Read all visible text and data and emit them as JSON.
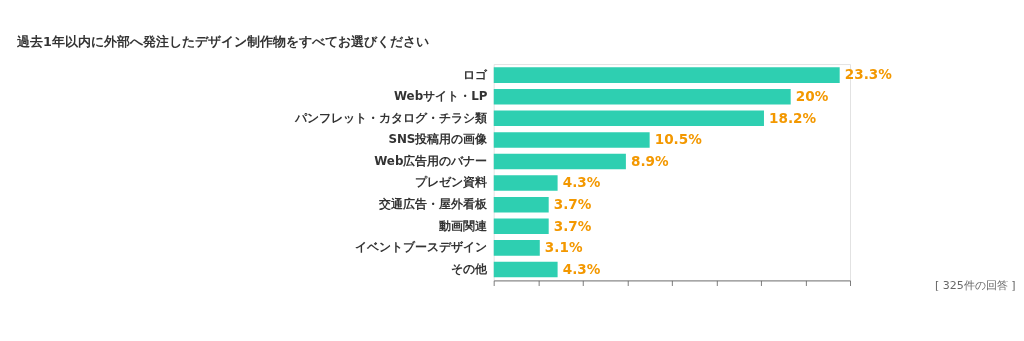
{
  "chart_data": {
    "type": "bar",
    "orientation": "horizontal",
    "title": "過去1年以内に外部へ発注したデザイン制作物をすべてお選びください",
    "categories": [
      "ロゴ",
      "Webサイト・LP",
      "パンフレット・カタログ・チラシ類",
      "SNS投稿用の画像",
      "Web広告用のバナー",
      "プレゼン資料",
      "交通広告・屋外看板",
      "動画関連",
      "イベントブースデザイン",
      "その他"
    ],
    "values": [
      23.3,
      20,
      18.2,
      10.5,
      8.9,
      4.3,
      3.7,
      3.7,
      3.1,
      4.3
    ],
    "value_labels": [
      "23.3%",
      "20%",
      "18.2%",
      "10.5%",
      "8.9%",
      "4.3%",
      "3.7%",
      "3.7%",
      "3.1%",
      "4.3%"
    ],
    "color": "#2ecfb1",
    "xlim": [
      0,
      24
    ],
    "xticks": [
      {
        "value": 0,
        "label": null
      },
      {
        "value": 3,
        "label": null
      },
      {
        "value": 6,
        "label": null
      },
      {
        "value": 9,
        "label": null
      },
      {
        "value": 12,
        "label": null
      },
      {
        "value": 15,
        "label": null
      },
      {
        "value": 18,
        "label": null
      },
      {
        "value": 21,
        "label": null
      },
      {
        "value": 24,
        "label": null
      }
    ],
    "tick_labels": "y",
    "grid": false,
    "annotations": [
      "[ 325件の回答 ]"
    ]
  }
}
